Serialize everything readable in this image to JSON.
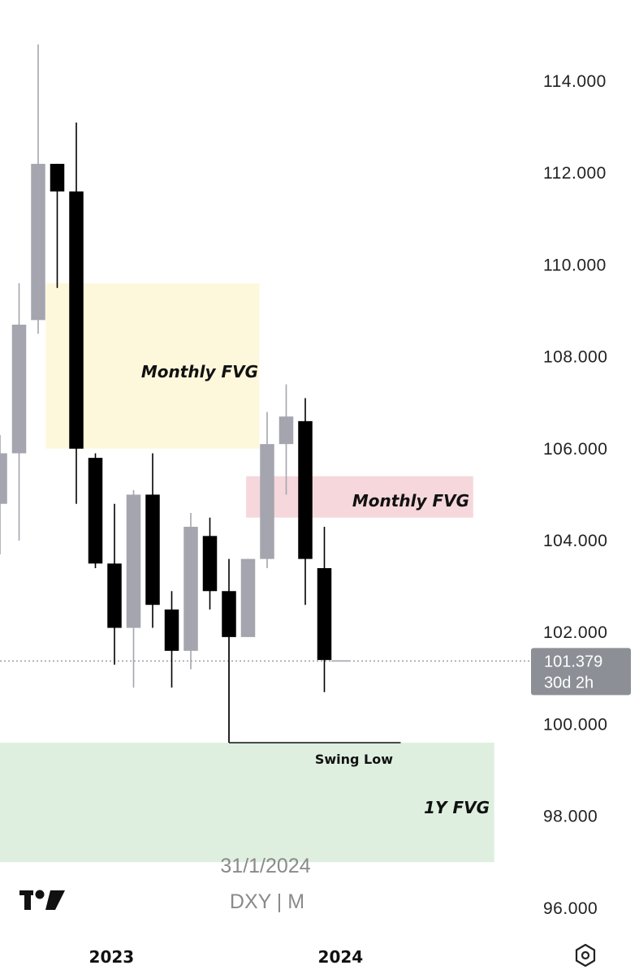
{
  "chart_data": {
    "type": "candlestick",
    "symbol_label": "DXY | M",
    "date_label": "31/1/2024",
    "logo": "tradingview-logo",
    "settings_icon": "settings-hexagon-icon",
    "y_ticks": [
      "114.000",
      "112.000",
      "110.000",
      "108.000",
      "106.000",
      "104.000",
      "102.000",
      "100.000",
      "98.000",
      "96.000"
    ],
    "y_tick_values": [
      114,
      112,
      110,
      108,
      106,
      104,
      102,
      100,
      98,
      96
    ],
    "ylim": [
      95.2,
      115.7
    ],
    "x_ticks": [
      {
        "label": "2023",
        "index": 5.25
      },
      {
        "label": "2024",
        "index": 17.25
      }
    ],
    "current_price": {
      "value": 101.379,
      "label": "101.379",
      "countdown": "30d 2h"
    },
    "colors": {
      "bull": "#a4a5ae",
      "bear": "#000000",
      "monthly_fvg_upper": "#fdf8dc",
      "monthly_fvg_lower": "#f5d7dc",
      "yearly_fvg": "#deefdf",
      "price_tag": "#8d8f97"
    },
    "candles": [
      {
        "open": 104.8,
        "high": 106.3,
        "low": 103.7,
        "close": 105.9
      },
      {
        "open": 105.9,
        "high": 109.6,
        "low": 104.0,
        "close": 108.7
      },
      {
        "open": 108.8,
        "high": 114.8,
        "low": 108.5,
        "close": 112.2
      },
      {
        "open": 112.2,
        "high": 112.2,
        "low": 109.5,
        "close": 111.6
      },
      {
        "open": 111.6,
        "high": 113.1,
        "low": 104.8,
        "close": 106.0
      },
      {
        "open": 105.8,
        "high": 105.9,
        "low": 103.4,
        "close": 103.5
      },
      {
        "open": 103.5,
        "high": 104.8,
        "low": 101.3,
        "close": 102.1
      },
      {
        "open": 102.1,
        "high": 105.1,
        "low": 100.8,
        "close": 105.0
      },
      {
        "open": 105.0,
        "high": 105.9,
        "low": 102.1,
        "close": 102.6
      },
      {
        "open": 102.5,
        "high": 102.9,
        "low": 100.8,
        "close": 101.6
      },
      {
        "open": 101.6,
        "high": 104.6,
        "low": 101.2,
        "close": 104.3
      },
      {
        "open": 104.1,
        "high": 104.5,
        "low": 102.5,
        "close": 102.9
      },
      {
        "open": 102.9,
        "high": 103.6,
        "low": 99.6,
        "close": 101.9
      },
      {
        "open": 101.9,
        "high": 103.6,
        "low": 101.9,
        "close": 103.6
      },
      {
        "open": 103.6,
        "high": 106.8,
        "low": 103.4,
        "close": 106.1
      },
      {
        "open": 106.1,
        "high": 107.4,
        "low": 105.0,
        "close": 106.7
      },
      {
        "open": 106.6,
        "high": 107.1,
        "low": 102.6,
        "close": 103.6
      },
      {
        "open": 103.4,
        "high": 104.3,
        "low": 100.7,
        "close": 101.4
      }
    ],
    "zones": [
      {
        "label": "Monthly FVG",
        "from_index": 2.4,
        "to_index": 13.6,
        "top": 109.6,
        "bottom": 106.0,
        "color": "#fdf8dc"
      },
      {
        "label": "Monthly FVG",
        "from_index": 12.9,
        "to_index": 24.8,
        "top": 105.4,
        "bottom": 104.5,
        "color": "#f5d7dc"
      },
      {
        "label": "1Y FVG",
        "from_index": -0.5,
        "to_index": 25.9,
        "top": 99.6,
        "bottom": 97.0,
        "color": "#deefdf"
      }
    ],
    "annotations": [
      {
        "label": "Swing Low",
        "from_index": 12.0,
        "to_index": 21.0,
        "value": 99.6
      }
    ]
  }
}
